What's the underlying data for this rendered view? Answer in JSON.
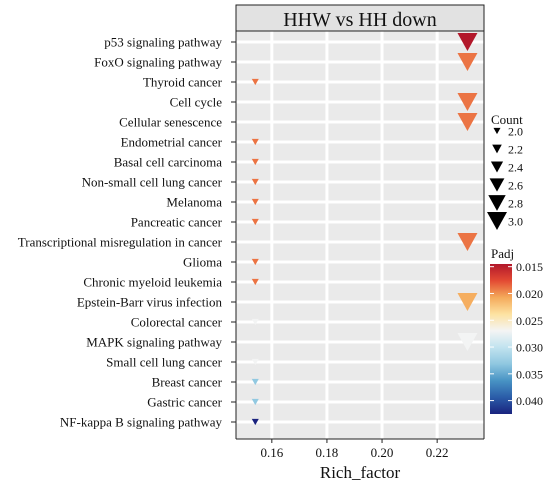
{
  "chart_data": {
    "type": "scatter",
    "title": "HHW vs HH down",
    "xlabel": "Rich_factor",
    "ylabel": "",
    "xlim": [
      0.147,
      0.237
    ],
    "xticks": [
      0.16,
      0.18,
      0.2,
      0.22
    ],
    "xtick_labels": [
      "0.16",
      "0.18",
      "0.20",
      "0.22"
    ],
    "grid": true,
    "marker": "triangle-down",
    "categories": [
      "p53 signaling pathway",
      "FoxO signaling pathway",
      "Thyroid cancer",
      "Cell cycle",
      "Cellular senescence",
      "Endometrial cancer",
      "Basal cell carcinoma",
      "Non-small cell lung cancer",
      "Melanoma",
      "Pancreatic cancer",
      "Transcriptional misregulation in cancer",
      "Glioma",
      "Chronic myeloid leukemia",
      "Epstein-Barr virus infection",
      "Colorectal cancer",
      "MAPK signaling pathway",
      "Small cell lung cancer",
      "Breast cancer",
      "Gastric cancer",
      "NF-kappa B signaling pathway"
    ],
    "rich_factor": [
      0.231,
      0.231,
      0.154,
      0.231,
      0.231,
      0.154,
      0.154,
      0.154,
      0.154,
      0.154,
      0.231,
      0.154,
      0.154,
      0.231,
      0.154,
      0.231,
      0.154,
      0.154,
      0.154,
      0.154
    ],
    "count": [
      3,
      3,
      2,
      3,
      3,
      2,
      2,
      2,
      2,
      2,
      3,
      2,
      2,
      3,
      2,
      3,
      2,
      2,
      2,
      2
    ],
    "padj": [
      0.014,
      0.019,
      0.019,
      0.019,
      0.019,
      0.019,
      0.019,
      0.019,
      0.019,
      0.019,
      0.019,
      0.019,
      0.019,
      0.021,
      0.027,
      0.027,
      0.027,
      0.033,
      0.033,
      0.043
    ],
    "size_legend": {
      "title": "Count",
      "values": [
        2.0,
        2.2,
        2.4,
        2.6,
        2.8,
        3.0
      ],
      "labels": [
        "2.0",
        "2.2",
        "2.4",
        "2.6",
        "2.8",
        "3.0"
      ]
    },
    "color_legend": {
      "title": "Padj",
      "range": [
        0.0145,
        0.0425
      ],
      "ticks": [
        0.015,
        0.02,
        0.025,
        0.03,
        0.035,
        0.04
      ],
      "tick_labels": [
        "0.015",
        "0.020",
        "0.025",
        "0.030",
        "0.035",
        "0.040"
      ],
      "colormap": [
        "#b2182b",
        "#e34a33",
        "#f4a95a",
        "#fde2a0",
        "#f4f4f4",
        "#c1e3ef",
        "#8fc7e0",
        "#4893c4",
        "#2a5ca8",
        "#1a237e"
      ]
    },
    "colors": {
      "panel_background": "#eaeaea",
      "grid": "#ffffff",
      "strip_background": "#e2e2e2"
    }
  }
}
